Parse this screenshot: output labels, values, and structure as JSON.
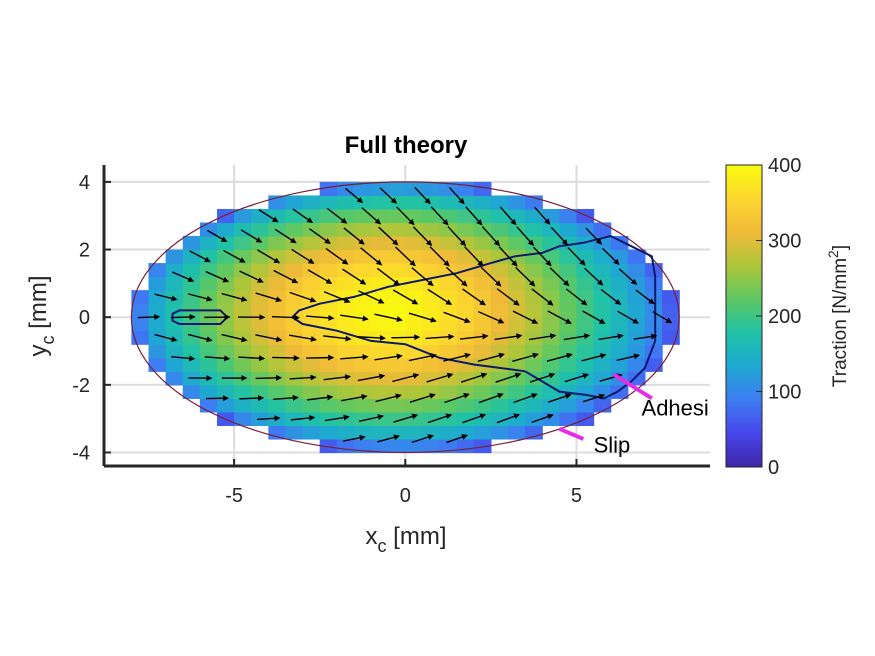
{
  "chart_data": {
    "type": "heatmap",
    "title": "Full theory",
    "xlabel": {
      "main": "x",
      "sub": "c",
      "unit": " [mm]"
    },
    "ylabel": {
      "main": "y",
      "sub": "c",
      "unit": " [mm]"
    },
    "xlim": [
      -8.8,
      8.9
    ],
    "ylim": [
      -4.4,
      4.5
    ],
    "xticks": [
      -5,
      0,
      5
    ],
    "xtick_labels": [
      "-5",
      "0",
      "5"
    ],
    "yticks": [
      -4,
      -2,
      0,
      2,
      4
    ],
    "ytick_labels": [
      "-4",
      "-2",
      "0",
      "2",
      "4"
    ],
    "grid": true,
    "contact_patch": {
      "semi_axis_x": 8.0,
      "semi_axis_y": 4.0,
      "cell_size": 0.5
    },
    "colorbar": {
      "label": {
        "main": "Traction [N/mm",
        "sup": "2",
        "end": "]"
      },
      "limits": [
        0,
        400
      ],
      "ticks": [
        0,
        100,
        200,
        300,
        400
      ],
      "tick_labels": [
        "0",
        "100",
        "200",
        "300",
        "400"
      ],
      "colormap": [
        "#3e26a8",
        "#4746eb",
        "#3e7df3",
        "#1ea9d1",
        "#20c2a7",
        "#5dc863",
        "#aec63a",
        "#f0ba39",
        "#fcd72f",
        "#f9fb0e"
      ]
    },
    "traction_peak": {
      "x": -0.5,
      "y": 0.3,
      "value": 340
    },
    "adhesion_boundary": [
      [
        -3.1,
        0.2
      ],
      [
        -2.5,
        0.4
      ],
      [
        -1.5,
        0.6
      ],
      [
        -0.5,
        0.9
      ],
      [
        0.5,
        1.1
      ],
      [
        1.5,
        1.3
      ],
      [
        2.5,
        1.6
      ],
      [
        3.2,
        1.8
      ],
      [
        4.0,
        1.9
      ],
      [
        4.5,
        2.1
      ],
      [
        5.2,
        2.2
      ],
      [
        6.0,
        2.4
      ],
      [
        6.4,
        2.2
      ],
      [
        7.2,
        1.8
      ],
      [
        7.3,
        1.2
      ],
      [
        7.3,
        -0.7
      ],
      [
        7.0,
        -1.5
      ],
      [
        6.6,
        -1.9
      ],
      [
        6.2,
        -2.2
      ],
      [
        5.8,
        -2.4
      ],
      [
        5.3,
        -2.3
      ],
      [
        4.5,
        -2.2
      ],
      [
        3.5,
        -1.6
      ],
      [
        2.0,
        -1.4
      ],
      [
        1.0,
        -1.2
      ],
      [
        0.0,
        -0.8
      ],
      [
        -1.0,
        -0.7
      ],
      [
        -2.0,
        -0.4
      ],
      [
        -3.0,
        -0.2
      ],
      [
        -3.3,
        0.0
      ]
    ],
    "small_adhesion_region": [
      [
        -6.8,
        -0.1
      ],
      [
        -6.8,
        0.1
      ],
      [
        -6.6,
        0.2
      ],
      [
        -5.4,
        0.2
      ],
      [
        -5.2,
        0.0
      ],
      [
        -5.4,
        -0.2
      ],
      [
        -6.6,
        -0.2
      ]
    ],
    "annotations": [
      {
        "text": "Adhesi",
        "x": 6.9,
        "y": -2.9,
        "line": [
          [
            6.1,
            -1.7
          ],
          [
            7.2,
            -2.4
          ]
        ],
        "color": "#e62ce6"
      },
      {
        "text": "Slip",
        "x": 5.5,
        "y": -4.0,
        "line": [
          [
            4.5,
            -3.3
          ],
          [
            5.2,
            -3.6
          ]
        ],
        "color": "#e62ce6"
      }
    ],
    "arrow_grid": {
      "dx": 1.0,
      "dy": 0.6,
      "x_start": -7.5,
      "y_start": -3.6
    }
  }
}
